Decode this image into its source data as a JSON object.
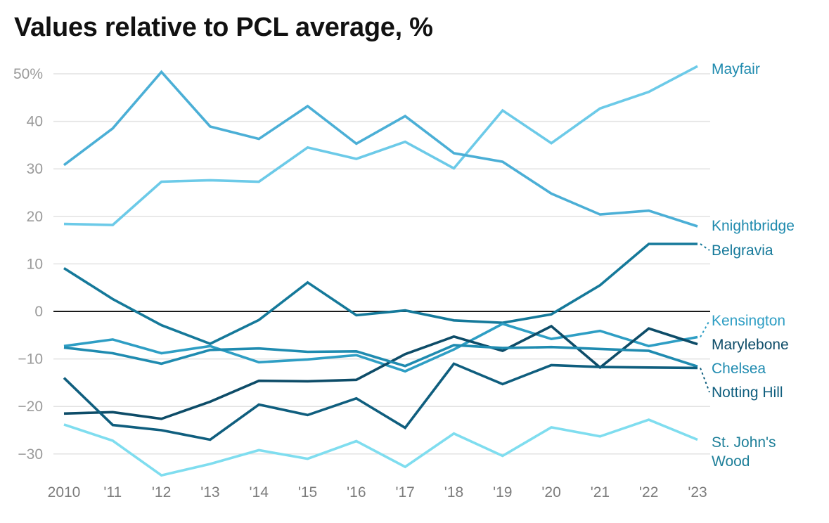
{
  "chart_data": {
    "type": "line",
    "title": "Values relative to PCL average, %",
    "xlabel": "",
    "ylabel": "",
    "x": [
      2010,
      2011,
      2012,
      2013,
      2014,
      2015,
      2016,
      2017,
      2018,
      2019,
      2020,
      2021,
      2022,
      2023
    ],
    "x_tick_labels": [
      "2010",
      "'11",
      "'12",
      "'13",
      "'14",
      "'15",
      "'16",
      "'17",
      "'18",
      "'19",
      "'20",
      "'21",
      "'22",
      "'23"
    ],
    "y_ticks": [
      50,
      40,
      30,
      20,
      10,
      0,
      -10,
      -20,
      -30
    ],
    "y_tick_labels": [
      "50%",
      "40",
      "30",
      "20",
      "10",
      "0",
      "−10",
      "−20",
      "−30"
    ],
    "ylim": [
      -35,
      52
    ],
    "grid": true,
    "zero_line": true,
    "legend": "direct labels at right end of lines",
    "series": [
      {
        "name": "Mayfair",
        "label_lines": [
          "Mayfair"
        ],
        "color": "#6CCAE8",
        "label_color": "#1E8AAE",
        "values": [
          18.4,
          18.2,
          27.3,
          27.6,
          27.3,
          34.5,
          32.1,
          35.7,
          30.1,
          42.3,
          35.4,
          42.7,
          46.2,
          51.6
        ]
      },
      {
        "name": "Knightbridge",
        "label_lines": [
          "Knightbridge"
        ],
        "color": "#4BAFD6",
        "label_color": "#1E8AAE",
        "values": [
          30.8,
          38.5,
          50.4,
          38.9,
          36.3,
          43.2,
          35.3,
          41.1,
          33.3,
          31.5,
          24.8,
          20.4,
          21.2,
          17.9
        ]
      },
      {
        "name": "Belgravia",
        "label_lines": [
          "Belgravia"
        ],
        "color": "#15799A",
        "label_color": "#15799A",
        "values": [
          9.1,
          2.6,
          -2.9,
          -6.8,
          -1.8,
          6.1,
          -0.8,
          0.2,
          -1.9,
          -2.4,
          -0.6,
          5.5,
          14.2,
          14.2
        ]
      },
      {
        "name": "Kensington",
        "label_lines": [
          "Kensington"
        ],
        "color": "#2E9EC4",
        "label_color": "#2E9EC4",
        "values": [
          -7.3,
          -5.9,
          -8.8,
          -7.3,
          -10.7,
          -10.1,
          -9.2,
          -12.6,
          -8.0,
          -2.6,
          -5.8,
          -4.1,
          -7.3,
          -5.4
        ]
      },
      {
        "name": "Marylebone",
        "label_lines": [
          "Marylebone"
        ],
        "color": "#0D4C68",
        "label_color": "#0D4C68",
        "values": [
          -21.5,
          -21.2,
          -22.6,
          -19.0,
          -14.6,
          -14.7,
          -14.4,
          -9.0,
          -5.3,
          -8.3,
          -3.1,
          -11.8,
          -3.6,
          -6.9
        ]
      },
      {
        "name": "Chelsea",
        "label_lines": [
          "Chelsea"
        ],
        "color": "#1F8BB0",
        "label_color": "#1F8BB0",
        "values": [
          -7.6,
          -8.8,
          -11.0,
          -8.1,
          -7.8,
          -8.5,
          -8.4,
          -11.5,
          -7.1,
          -7.7,
          -7.5,
          -7.9,
          -8.3,
          -11.6
        ]
      },
      {
        "name": "Notting Hill",
        "label_lines": [
          "Notting Hill"
        ],
        "color": "#0F5E7E",
        "label_color": "#0F5E7E",
        "values": [
          -14.0,
          -23.9,
          -25.0,
          -27.0,
          -19.6,
          -21.8,
          -18.3,
          -24.5,
          -11.0,
          -15.3,
          -11.3,
          -11.7,
          -11.8,
          -11.9
        ]
      },
      {
        "name": "St. John's Wood",
        "label_lines": [
          "St. John's",
          "Wood"
        ],
        "color": "#7FDDEF",
        "label_color": "#1E7F99",
        "values": [
          -23.8,
          -27.2,
          -34.5,
          -32.1,
          -29.2,
          -31.0,
          -27.3,
          -32.7,
          -25.7,
          -30.4,
          -24.4,
          -26.3,
          -22.8,
          -27.0
        ]
      }
    ],
    "label_order": [
      "Mayfair",
      "Knightbridge",
      "Belgravia",
      "Kensington",
      "Marylebone",
      "Chelsea",
      "Notting Hill",
      "St. John's Wood"
    ]
  }
}
